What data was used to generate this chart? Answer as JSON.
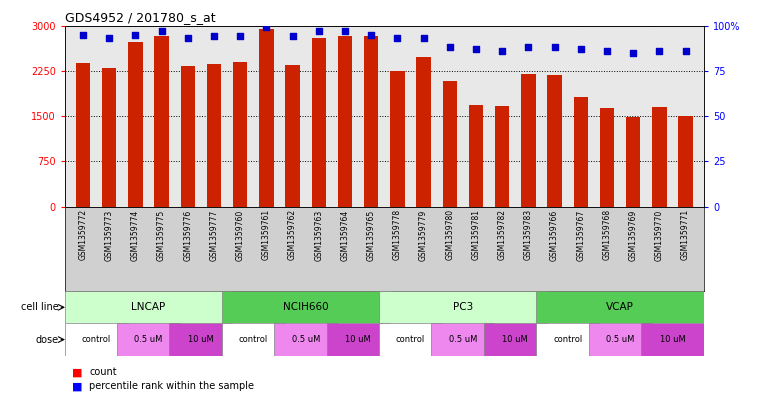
{
  "title": "GDS4952 / 201780_s_at",
  "samples": [
    "GSM1359772",
    "GSM1359773",
    "GSM1359774",
    "GSM1359775",
    "GSM1359776",
    "GSM1359777",
    "GSM1359760",
    "GSM1359761",
    "GSM1359762",
    "GSM1359763",
    "GSM1359764",
    "GSM1359765",
    "GSM1359778",
    "GSM1359779",
    "GSM1359780",
    "GSM1359781",
    "GSM1359782",
    "GSM1359783",
    "GSM1359766",
    "GSM1359767",
    "GSM1359768",
    "GSM1359769",
    "GSM1359770",
    "GSM1359771"
  ],
  "counts": [
    2380,
    2290,
    2720,
    2820,
    2330,
    2370,
    2390,
    2950,
    2350,
    2800,
    2830,
    2820,
    2250,
    2480,
    2090,
    1680,
    1670,
    2200,
    2180,
    1820,
    1640,
    1490,
    1650,
    1510
  ],
  "percentiles": [
    95,
    93,
    95,
    97,
    93,
    94,
    94,
    99,
    94,
    97,
    97,
    95,
    93,
    93,
    88,
    87,
    86,
    88,
    88,
    87,
    86,
    85,
    86,
    86
  ],
  "cell_lines": [
    {
      "label": "LNCAP",
      "start": 0,
      "end": 6,
      "color": "#ccffcc"
    },
    {
      "label": "NCIH660",
      "start": 6,
      "end": 12,
      "color": "#55cc55"
    },
    {
      "label": "PC3",
      "start": 12,
      "end": 18,
      "color": "#ccffcc"
    },
    {
      "label": "VCAP",
      "start": 18,
      "end": 24,
      "color": "#55cc55"
    }
  ],
  "doses": [
    {
      "label": "control",
      "start": 0,
      "end": 2
    },
    {
      "label": "0.5 uM",
      "start": 2,
      "end": 4
    },
    {
      "label": "10 uM",
      "start": 4,
      "end": 6
    },
    {
      "label": "control",
      "start": 6,
      "end": 8
    },
    {
      "label": "0.5 uM",
      "start": 8,
      "end": 10
    },
    {
      "label": "10 uM",
      "start": 10,
      "end": 12
    },
    {
      "label": "control",
      "start": 12,
      "end": 14
    },
    {
      "label": "0.5 uM",
      "start": 14,
      "end": 16
    },
    {
      "label": "10 uM",
      "start": 16,
      "end": 18
    },
    {
      "label": "control",
      "start": 18,
      "end": 20
    },
    {
      "label": "0.5 uM",
      "start": 20,
      "end": 22
    },
    {
      "label": "10 uM",
      "start": 22,
      "end": 24
    }
  ],
  "dose_colors": {
    "control": "#ffffff",
    "0.5 uM": "#ee88ee",
    "10 uM": "#cc44cc"
  },
  "bar_color": "#cc2200",
  "dot_color": "#0000cc",
  "ylim_left": [
    0,
    3000
  ],
  "ylim_right": [
    0,
    100
  ],
  "yticks_left": [
    0,
    750,
    1500,
    2250,
    3000
  ],
  "ytick_labels_left": [
    "0",
    "750",
    "1500",
    "2250",
    "3000"
  ],
  "yticks_right": [
    0,
    25,
    50,
    75,
    100
  ],
  "ytick_labels_right": [
    "0",
    "25",
    "50",
    "75",
    "100%"
  ],
  "chart_bg": "#e8e8e8",
  "label_row_bg": "#d0d0d0"
}
